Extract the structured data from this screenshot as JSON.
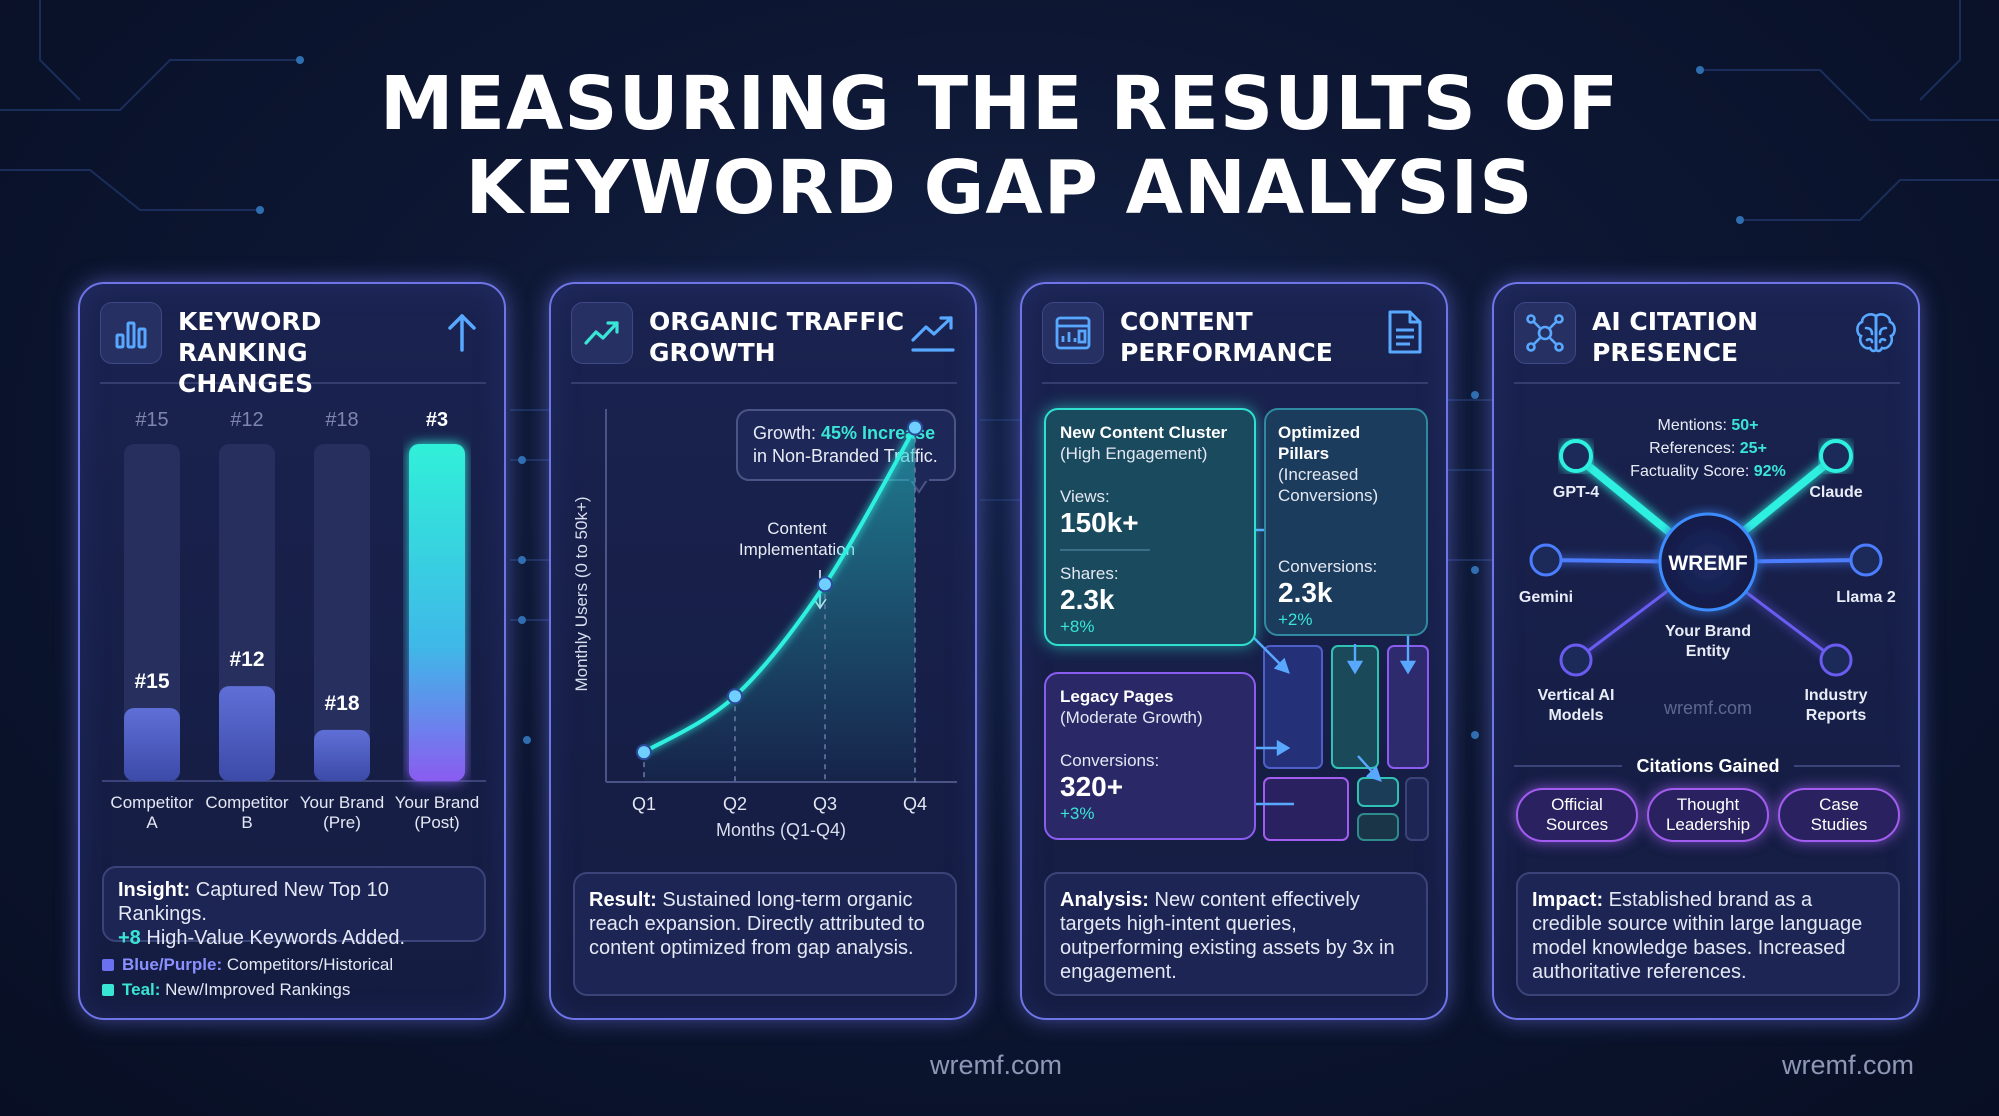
{
  "title": {
    "line1": "MEASURING THE RESULTS OF",
    "line2": "KEYWORD GAP ANALYSIS"
  },
  "footer": {
    "center": "wremf.com",
    "right": "wremf.com"
  },
  "cards": {
    "ranking": {
      "title_line1": "KEYWORD",
      "title_line2": "RANKING CHANGES",
      "icon": "bar-chart-icon",
      "right_icon": "arrow-up-icon",
      "chart_data": {
        "type": "bar",
        "categories": [
          "Competitor A",
          "Competitor B",
          "Your Brand (Pre)",
          "Your Brand (Post)"
        ],
        "values": [
          15,
          12,
          18,
          3
        ],
        "labels": [
          "#15",
          "#12",
          "#18",
          "#3"
        ],
        "category_lines": [
          [
            "Competitor",
            "A"
          ],
          [
            "Competitor",
            "B"
          ],
          [
            "Your Brand",
            "(Pre)"
          ],
          [
            "Your Brand",
            "(Post)"
          ]
        ]
      },
      "insight": {
        "label": "Insight:",
        "text": " Captured New Top 10 Rankings.",
        "line2_highlight": "+8",
        "line2_text": " High-Value Keywords Added."
      },
      "legend": [
        {
          "label": "Blue/Purple:",
          "text": " Competitors/Historical",
          "color": "#6a70f0"
        },
        {
          "label": "Teal:",
          "text": " New/Improved Rankings",
          "color": "#39e6d6"
        }
      ]
    },
    "traffic": {
      "title_line1": "ORGANIC TRAFFIC",
      "title_line2": "GROWTH",
      "icon": "trend-up-icon",
      "right_icon": "trend-up-icon",
      "chart_data": {
        "type": "line",
        "x": [
          "Q1",
          "Q2",
          "Q3",
          "Q4"
        ],
        "y_relative": [
          0.08,
          0.23,
          0.53,
          0.95
        ],
        "xlabel": "Months (Q1-Q4)",
        "ylabel": "Monthly Users (0 to 50k+)",
        "annotation_line1": "Content",
        "annotation_line2": "Implementation",
        "callout_prefix": "Growth: ",
        "callout_highlight": "45% Increase",
        "callout_line2": "in Non-Branded Traffic."
      },
      "result": {
        "label": "Result:",
        "text": " Sustained long-term organic reach expansion. Directly attributed to content optimized from gap analysis."
      }
    },
    "content": {
      "title_line1": "CONTENT",
      "title_line2": "PERFORMANCE",
      "icon": "dashboard-icon",
      "right_icon": "document-icon",
      "cluster": {
        "title": "New Content Cluster",
        "subtitle": "(High Engagement)",
        "views_label": "Views:",
        "views": "150k+",
        "shares_label": "Shares:",
        "shares": "2.3k",
        "shares_change": "+8%"
      },
      "pillars": {
        "title": "Optimized Pillars",
        "subtitle1": "(Increased",
        "subtitle2": "Conversions)",
        "conv_label": "Conversions:",
        "conv": "2.3k",
        "conv_change": "+2%"
      },
      "legacy": {
        "title": "Legacy Pages",
        "subtitle": "(Moderate Growth)",
        "conv_label": "Conversions:",
        "conv": "320+",
        "conv_change": "+3%"
      },
      "analysis": {
        "label": "Analysis:",
        "text": " New content effectively targets high-intent queries, outperforming existing assets by 3x in engagement."
      }
    },
    "ai": {
      "title_line1": "AI CITATION",
      "title_line2": "PRESENCE",
      "icon": "network-icon",
      "right_icon": "brain-icon",
      "stats": [
        {
          "label": "Mentions: ",
          "value": "50+"
        },
        {
          "label": "References: ",
          "value": "25+"
        },
        {
          "label": "Factuality Score: ",
          "value": "92%"
        }
      ],
      "hub": "WREMF",
      "hub_label_line1": "Your Brand",
      "hub_label_line2": "Entity",
      "watermark": "wremf.com",
      "nodes": {
        "gpt4": "GPT-4",
        "claude": "Claude",
        "gemini": "Gemini",
        "llama": "Llama 2",
        "vertical_line1": "Vertical AI",
        "vertical_line2": "Models",
        "industry_line1": "Industry",
        "industry_line2": "Reports"
      },
      "citations_title": "Citations Gained",
      "citations": [
        {
          "line1": "Official",
          "line2": "Sources"
        },
        {
          "line1": "Thought",
          "line2": "Leadership"
        },
        {
          "line1": "Case",
          "line2": "Studies"
        }
      ],
      "impact": {
        "label": "Impact:",
        "text": " Established brand as a credible source within large language model knowledge bases. Increased authoritative references."
      }
    }
  }
}
